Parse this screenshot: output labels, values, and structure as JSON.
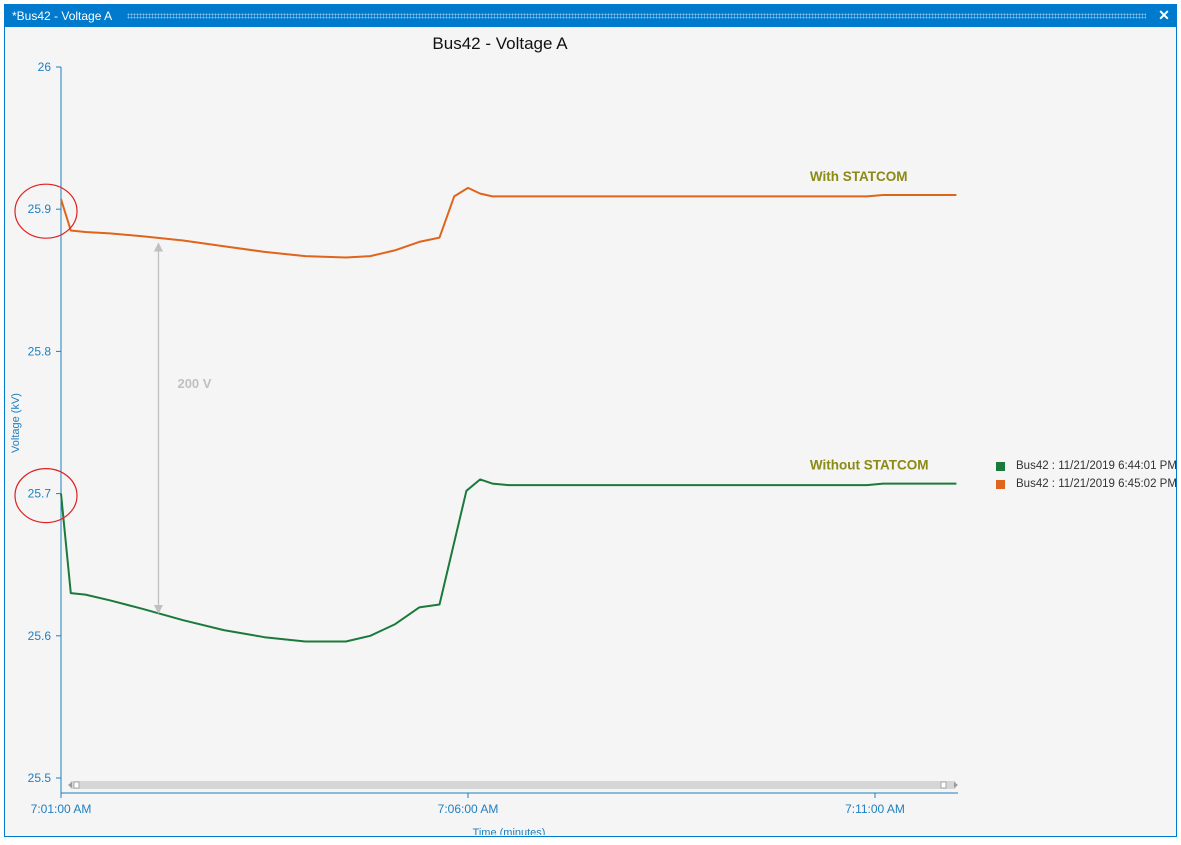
{
  "window": {
    "title": "*Bus42 - Voltage A",
    "close_glyph": "✕"
  },
  "colors": {
    "accent": "#007acc",
    "axis": "#1f7fc0",
    "with_statcom": "#e0641b",
    "without_statcom": "#1b7a3b",
    "annotation_text": "#8a8a14",
    "circle": "#e02020",
    "arrow": "#c0c0c0"
  },
  "legend": {
    "items": [
      {
        "label": "Bus42 : 11/21/2019 6:44:01 PM",
        "color": "#1b7a3b"
      },
      {
        "label": "Bus42 : 11/21/2019 6:45:02 PM",
        "color": "#e0641b"
      }
    ]
  },
  "chart_data": {
    "type": "line",
    "title": "Bus42 - Voltage A",
    "xlabel": "Time (minutes)",
    "ylabel": "Voltage (kV)",
    "ylim": [
      25.5,
      26.0
    ],
    "xlim": [
      0,
      11
    ],
    "yticks": [
      26,
      25.9,
      25.8,
      25.7,
      25.6,
      25.5
    ],
    "ytick_labels": [
      "26",
      "25.9",
      "25.8",
      "25.7",
      "25.6",
      "25.5"
    ],
    "xticks": [
      0,
      5,
      10
    ],
    "xtick_labels": [
      "7:01:00 AM",
      "7:06:00 AM",
      "7:11:00 AM"
    ],
    "grid": false,
    "legend_position": "right",
    "series": [
      {
        "name": "Bus42 : 11/21/2019 6:44:01 PM",
        "color": "#1b7a3b",
        "x": [
          0,
          0.12,
          0.3,
          0.6,
          1.0,
          1.5,
          2.0,
          2.5,
          3.0,
          3.5,
          3.8,
          4.1,
          4.4,
          4.65,
          4.98,
          5.15,
          5.3,
          5.5,
          6.0,
          7.0,
          8.0,
          9.0,
          9.9,
          10.1,
          10.5,
          11.0
        ],
        "y": [
          25.7,
          25.63,
          25.629,
          25.625,
          25.619,
          25.611,
          25.604,
          25.599,
          25.596,
          25.596,
          25.6,
          25.608,
          25.62,
          25.622,
          25.702,
          25.71,
          25.707,
          25.706,
          25.706,
          25.706,
          25.706,
          25.706,
          25.706,
          25.707,
          25.707,
          25.707
        ]
      },
      {
        "name": "Bus42 : 11/21/2019 6:45:02 PM",
        "color": "#e0641b",
        "x": [
          0,
          0.12,
          0.3,
          0.6,
          1.0,
          1.5,
          2.0,
          2.5,
          3.0,
          3.5,
          3.8,
          4.1,
          4.4,
          4.65,
          4.83,
          5.0,
          5.15,
          5.3,
          5.5,
          6.0,
          7.0,
          8.0,
          9.0,
          9.9,
          10.1,
          10.5,
          11.0
        ],
        "y": [
          25.907,
          25.885,
          25.884,
          25.883,
          25.881,
          25.878,
          25.874,
          25.87,
          25.867,
          25.866,
          25.867,
          25.871,
          25.877,
          25.88,
          25.909,
          25.915,
          25.911,
          25.909,
          25.909,
          25.909,
          25.909,
          25.909,
          25.909,
          25.909,
          25.91,
          25.91,
          25.91
        ]
      }
    ],
    "annotations": [
      {
        "text": "With STATCOM",
        "x": 9.2,
        "y": 25.92
      },
      {
        "text": "Without STATCOM",
        "x": 9.2,
        "y": 25.717
      },
      {
        "text": "200 V",
        "x": 1.48,
        "y": 25.777,
        "arrow_from": 25.876,
        "arrow_to": 25.616
      }
    ],
    "highlight_circles": [
      {
        "x": 0,
        "y": 25.9
      },
      {
        "x": 0,
        "y": 25.7
      }
    ]
  }
}
